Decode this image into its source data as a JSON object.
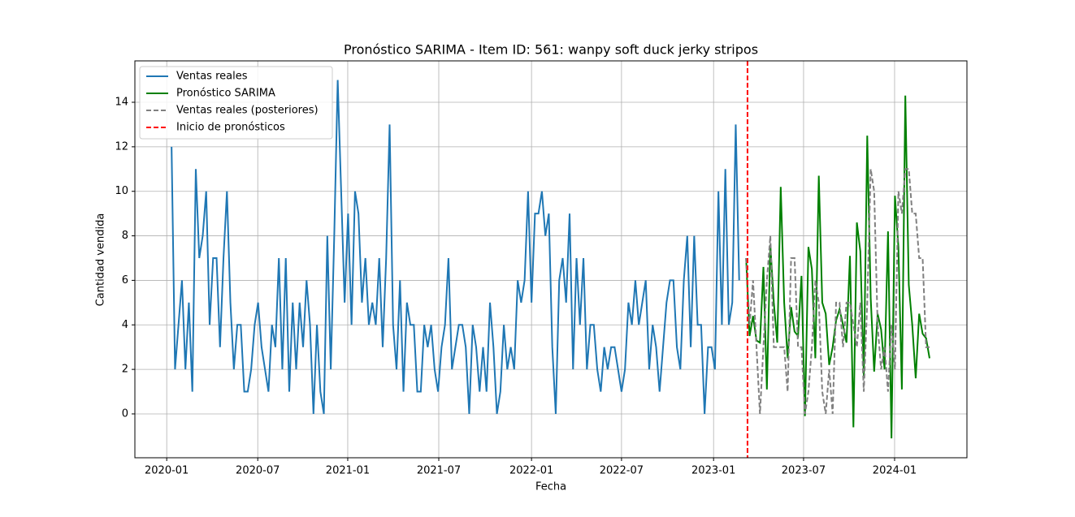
{
  "chart_data": {
    "type": "line",
    "title": "Pronóstico SARIMA - Item ID: 561: wanpy soft duck jerky stripos",
    "xlabel": "Fecha",
    "ylabel": "Cantidad vendida",
    "xlim": [
      -10.6,
      229.8
    ],
    "xticks": [
      {
        "value": -1.4,
        "label": "2020-01"
      },
      {
        "value": 24.9,
        "label": "2020-07"
      },
      {
        "value": 50.9,
        "label": "2021-01"
      },
      {
        "value": 77.2,
        "label": "2021-07"
      },
      {
        "value": 104.0,
        "label": "2022-01"
      },
      {
        "value": 130.0,
        "label": "2022-07"
      },
      {
        "value": 156.6,
        "label": "2023-01"
      },
      {
        "value": 182.6,
        "label": "2023-07"
      },
      {
        "value": 208.9,
        "label": "2024-01"
      }
    ],
    "ylim": [
      -1.97,
      15.86
    ],
    "yticks": [
      0,
      2,
      4,
      6,
      8,
      10,
      12,
      14
    ],
    "grid": true,
    "legend": "upper left",
    "series": [
      {
        "name": "Ventas reales",
        "color": "#1f77b4",
        "style": "solid",
        "values": [
          12,
          2,
          4,
          6,
          2,
          5,
          1,
          11,
          7,
          8,
          10,
          4,
          7,
          7,
          3,
          7,
          10,
          5,
          2,
          4,
          4,
          1,
          1,
          2,
          4,
          5,
          3,
          2,
          1,
          4,
          3,
          7,
          2,
          7,
          1,
          5,
          2,
          5,
          3,
          6,
          4,
          0,
          4,
          1,
          0,
          8,
          2,
          8,
          15,
          10,
          5,
          9,
          4,
          10,
          9,
          5,
          7,
          4,
          5,
          4,
          7,
          3,
          7,
          13,
          4,
          2,
          6,
          1,
          5,
          4,
          4,
          1,
          1,
          4,
          3,
          4,
          2,
          1,
          3,
          4,
          7,
          2,
          3,
          4,
          4,
          3,
          0,
          4,
          3,
          1,
          3,
          1,
          5,
          3,
          0,
          1,
          4,
          2,
          3,
          2,
          6,
          5,
          6,
          10,
          5,
          9,
          9,
          10,
          8,
          9,
          3,
          0,
          6,
          7,
          5,
          9,
          2,
          7,
          4,
          7,
          2,
          4,
          4,
          2,
          1,
          3,
          2,
          3,
          3,
          2,
          1,
          2,
          5,
          4,
          6,
          4,
          5,
          6,
          2,
          4,
          3,
          1,
          3,
          5,
          6,
          6,
          3,
          2,
          6,
          8,
          3,
          8,
          4,
          4,
          0,
          3,
          3,
          2,
          10,
          4,
          11,
          4,
          5,
          13,
          6,
          null,
          null,
          null,
          null,
          null,
          null,
          null,
          null,
          null,
          null,
          null,
          null,
          null,
          null,
          null,
          null,
          null,
          null,
          null,
          null,
          null,
          null,
          null,
          null,
          null,
          null,
          null,
          null,
          null,
          null,
          null,
          null,
          null,
          null,
          null,
          null,
          null,
          null,
          null,
          null,
          null,
          null,
          null,
          null,
          null,
          null,
          null,
          null,
          null,
          null,
          null,
          null,
          null,
          null,
          null
        ]
      },
      {
        "name": "Pronóstico SARIMA",
        "color": "#008000",
        "style": "solid",
        "values": [
          null,
          null,
          null,
          null,
          null,
          null,
          null,
          null,
          null,
          null,
          null,
          null,
          null,
          null,
          null,
          null,
          null,
          null,
          null,
          null,
          null,
          null,
          null,
          null,
          null,
          null,
          null,
          null,
          null,
          null,
          null,
          null,
          null,
          null,
          null,
          null,
          null,
          null,
          null,
          null,
          null,
          null,
          null,
          null,
          null,
          null,
          null,
          null,
          null,
          null,
          null,
          null,
          null,
          null,
          null,
          null,
          null,
          null,
          null,
          null,
          null,
          null,
          null,
          null,
          null,
          null,
          null,
          null,
          null,
          null,
          null,
          null,
          null,
          null,
          null,
          null,
          null,
          null,
          null,
          null,
          null,
          null,
          null,
          null,
          null,
          null,
          null,
          null,
          null,
          null,
          null,
          null,
          null,
          null,
          null,
          null,
          null,
          null,
          null,
          null,
          null,
          null,
          null,
          null,
          null,
          null,
          null,
          null,
          null,
          null,
          null,
          null,
          null,
          null,
          null,
          null,
          null,
          null,
          null,
          null,
          null,
          null,
          null,
          null,
          null,
          null,
          null,
          null,
          null,
          null,
          null,
          null,
          null,
          null,
          null,
          null,
          null,
          null,
          null,
          null,
          null,
          null,
          null,
          null,
          null,
          null,
          null,
          null,
          null,
          null,
          null,
          null,
          null,
          null,
          null,
          null,
          null,
          null,
          null,
          null,
          null,
          null,
          null,
          null,
          null,
          null,
          7,
          3.5,
          4.4,
          3.3,
          3.2,
          6.6,
          1.1,
          7.6,
          5,
          3.2,
          10.2,
          5,
          2.5,
          4.8,
          3.7,
          3.5,
          6.2,
          -0.1,
          7.5,
          6.5,
          2.5,
          10.7,
          5,
          4.5,
          2.2,
          3.0,
          4.2,
          4.7,
          4,
          3.2,
          7.1,
          -0.6,
          8.6,
          7.3,
          1.7,
          12.5,
          5.2,
          1.9,
          4.5,
          3.8,
          2,
          8.2,
          -1.1,
          9.8,
          7.5,
          1.1,
          14.3,
          5.8,
          4,
          1.6,
          4.5,
          3.6,
          3.4,
          2.5
        ]
      },
      {
        "name": "Ventas reales (posteriores)",
        "color": "#808080",
        "style": "dashed",
        "values": [
          null,
          null,
          null,
          null,
          null,
          null,
          null,
          null,
          null,
          null,
          null,
          null,
          null,
          null,
          null,
          null,
          null,
          null,
          null,
          null,
          null,
          null,
          null,
          null,
          null,
          null,
          null,
          null,
          null,
          null,
          null,
          null,
          null,
          null,
          null,
          null,
          null,
          null,
          null,
          null,
          null,
          null,
          null,
          null,
          null,
          null,
          null,
          null,
          null,
          null,
          null,
          null,
          null,
          null,
          null,
          null,
          null,
          null,
          null,
          null,
          null,
          null,
          null,
          null,
          null,
          null,
          null,
          null,
          null,
          null,
          null,
          null,
          null,
          null,
          null,
          null,
          null,
          null,
          null,
          null,
          null,
          null,
          null,
          null,
          null,
          null,
          null,
          null,
          null,
          null,
          null,
          null,
          null,
          null,
          null,
          null,
          null,
          null,
          null,
          null,
          null,
          null,
          null,
          null,
          null,
          null,
          null,
          null,
          null,
          null,
          null,
          null,
          null,
          null,
          null,
          null,
          null,
          null,
          null,
          null,
          null,
          null,
          null,
          null,
          null,
          null,
          null,
          null,
          null,
          null,
          null,
          null,
          null,
          null,
          null,
          null,
          null,
          null,
          null,
          null,
          null,
          null,
          null,
          null,
          null,
          null,
          null,
          null,
          null,
          null,
          null,
          null,
          null,
          null,
          null,
          null,
          null,
          null,
          null,
          null,
          null,
          null,
          null,
          null,
          null,
          null,
          7,
          4,
          6,
          3,
          0,
          3,
          6,
          8,
          3,
          3,
          3,
          3,
          1,
          7,
          7,
          3,
          3,
          0,
          1,
          3,
          6,
          5,
          1,
          0,
          2,
          0,
          5,
          5,
          3,
          5,
          5,
          4,
          3,
          5,
          1,
          5,
          11,
          10,
          4,
          2,
          3,
          1,
          4,
          2,
          10,
          9,
          11,
          11,
          9,
          9,
          7,
          7,
          3,
          3
        ]
      },
      {
        "name": "Inicio de pronósticos",
        "color": "#ff0000",
        "style": "dashed",
        "vline": 166.4
      }
    ]
  }
}
